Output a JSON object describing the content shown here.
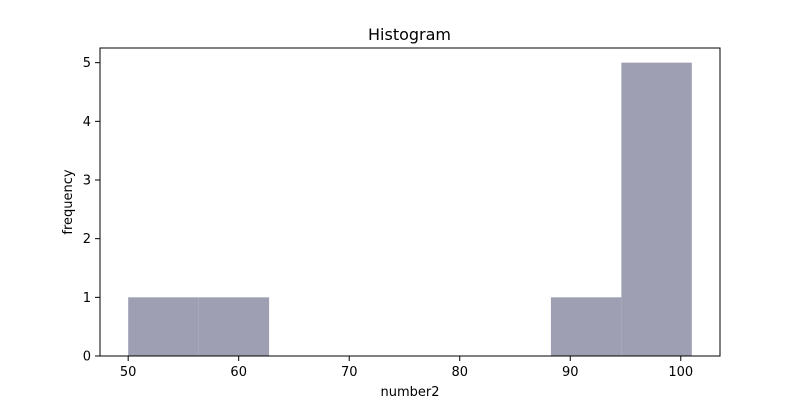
{
  "chart_data": {
    "type": "histogram",
    "title": "Histogram",
    "xlabel": "number2",
    "ylabel": "frequency",
    "xlim": [
      47.45,
      103.55
    ],
    "ylim": [
      0,
      5.25
    ],
    "x_ticks": [
      50,
      60,
      70,
      80,
      90,
      100
    ],
    "y_ticks": [
      0,
      1,
      2,
      3,
      4,
      5
    ],
    "bar_color": "#9e9fb3",
    "grid": false,
    "bins": [
      {
        "start": 50.0,
        "end": 56.375,
        "count": 1
      },
      {
        "start": 56.375,
        "end": 62.75,
        "count": 1
      },
      {
        "start": 62.75,
        "end": 69.125,
        "count": 0
      },
      {
        "start": 69.125,
        "end": 75.5,
        "count": 0
      },
      {
        "start": 75.5,
        "end": 81.875,
        "count": 0
      },
      {
        "start": 81.875,
        "end": 88.25,
        "count": 0
      },
      {
        "start": 88.25,
        "end": 94.625,
        "count": 1
      },
      {
        "start": 94.625,
        "end": 101.0,
        "count": 5
      }
    ]
  }
}
